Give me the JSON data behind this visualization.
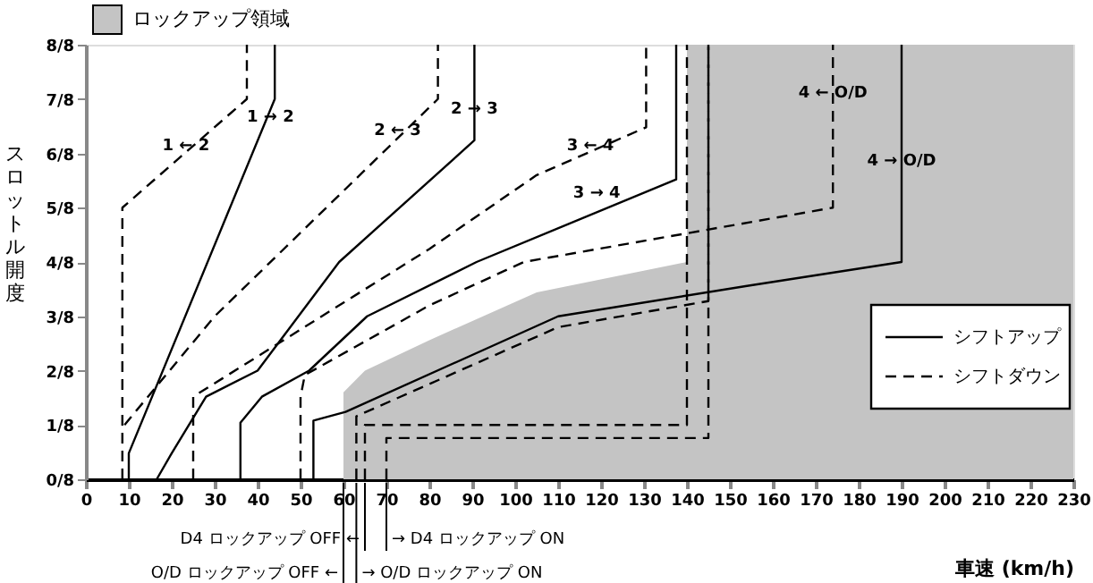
{
  "chart_data": {
    "type": "line",
    "xlabel": "車速 (km/h)",
    "ylabel": "スロットル開度",
    "xlim": [
      0,
      230
    ],
    "xticks": [
      0,
      10,
      20,
      30,
      40,
      50,
      60,
      70,
      80,
      90,
      100,
      110,
      120,
      130,
      140,
      150,
      160,
      170,
      180,
      190,
      200,
      210,
      220,
      230
    ],
    "ylim": [
      0,
      1
    ],
    "yticks": [
      {
        "value": 0,
        "label": "0/8"
      },
      {
        "value": 0.125,
        "label": "1/8"
      },
      {
        "value": 0.25,
        "label": "2/8"
      },
      {
        "value": 0.375,
        "label": "3/8"
      },
      {
        "value": 0.5,
        "label": "4/8"
      },
      {
        "value": 0.625,
        "label": "5/8"
      },
      {
        "value": 0.75,
        "label": "6/8"
      },
      {
        "value": 0.875,
        "label": "7/8"
      },
      {
        "value": 1,
        "label": "8/8"
      }
    ],
    "grid": false,
    "legend": "right",
    "series": [
      {
        "type": "area",
        "name": "ロックアップ領域",
        "color": "#c4c4c4",
        "x": [
          60,
          60,
          65,
          80,
          105,
          140,
          140,
          230
        ],
        "values": [
          0,
          0.2,
          0.25,
          0.32,
          0.43,
          0.5,
          1,
          1
        ]
      },
      {
        "name": "シフトアップ",
        "color": "#000000",
        "line_style": "solid",
        "x": [
          10,
          10,
          44,
          44,
          null,
          16.5,
          20,
          28,
          40,
          59,
          90.5,
          90.5,
          null,
          36,
          36,
          41,
          52,
          65.5,
          91,
          137.5,
          137.5,
          null,
          53,
          53,
          60.5,
          110,
          154,
          190,
          190
        ],
        "values": [
          0,
          0.06,
          0.875,
          1,
          null,
          0,
          0.06,
          0.19,
          0.25,
          0.5,
          0.78,
          1,
          null,
          0,
          0.13,
          0.19,
          0.25,
          0.375,
          0.5,
          0.69,
          1,
          null,
          0,
          0.135,
          0.155,
          0.375,
          0.445,
          0.5,
          1
        ]
      },
      {
        "name": "シフトダウン",
        "color": "#000000",
        "line_style": "dashed",
        "x": [
          8.5,
          8.5,
          37.5,
          37.5,
          null,
          9,
          30,
          82,
          82,
          null,
          25,
          25,
          80,
          105,
          130.5,
          130.5,
          null,
          50,
          50,
          51,
          80,
          102,
          174,
          174
        ],
        "values": [
          0,
          0.625,
          0.875,
          1,
          null,
          0.125,
          0.375,
          0.875,
          1,
          null,
          0,
          0.19,
          0.53,
          0.7,
          0.81,
          1,
          null,
          0,
          0.19,
          0.24,
          0.4,
          0.5,
          0.625,
          1
        ]
      },
      {
        "color": "#000000",
        "line_style": "dashed",
        "x": [
          65,
          65,
          140,
          140
        ],
        "values": [
          0,
          0.125,
          0.125,
          1
        ]
      },
      {
        "color": "#000000",
        "line_style": "dashed",
        "x": [
          70,
          70,
          145,
          145
        ],
        "values": [
          0,
          0.095,
          0.095,
          1
        ]
      },
      {
        "color": "#000000",
        "line_style": "dashed",
        "x": [
          63,
          63,
          110,
          145,
          145
        ],
        "values": [
          0,
          0.145,
          0.35,
          0.41,
          1
        ]
      }
    ],
    "annotations": [
      {
        "text": "1 ← 2",
        "x": 23.3,
        "y": 0.745
      },
      {
        "text": "1 → 2",
        "x": 43,
        "y": 0.81
      },
      {
        "text": "2 ← 3",
        "x": 72.6,
        "y": 0.78
      },
      {
        "text": "2 → 3",
        "x": 90.5,
        "y": 0.83
      },
      {
        "text": "3 ← 4",
        "x": 117.5,
        "y": 0.744
      },
      {
        "text": "3 → 4",
        "x": 119,
        "y": 0.635
      },
      {
        "text": "4 ← O/D",
        "x": 174,
        "y": 0.867
      },
      {
        "text": "4 → O/D",
        "x": 190,
        "y": 0.709
      },
      {
        "text": "D4 ロックアップ OFF ←",
        "x": 65,
        "y": 0
      },
      {
        "text": "→ D4 ロックアップ ON",
        "x": 70,
        "y": 0
      },
      {
        "text": "O/D ロックアップ OFF ←",
        "x": 60,
        "y": 0
      },
      {
        "text": "→ O/D ロックアップ ON",
        "x": 63,
        "y": 0
      }
    ]
  }
}
